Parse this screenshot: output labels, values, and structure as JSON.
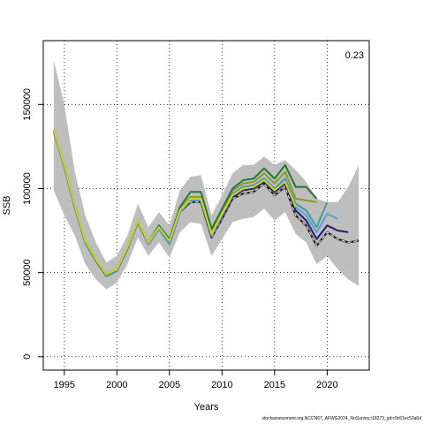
{
  "chart_data": {
    "type": "line",
    "xlabel": "Years",
    "ylabel": "SSB",
    "annotation": "0.23",
    "xlim": [
      1993,
      2024
    ],
    "ylim": [
      -8000,
      188000
    ],
    "xticks": [
      1995,
      2000,
      2005,
      2010,
      2015,
      2020
    ],
    "yticks": [
      0,
      50000,
      100000,
      150000
    ],
    "grid": true,
    "band": {
      "x": [
        1994,
        1995,
        1996,
        1997,
        1998,
        1999,
        2000,
        2001,
        2002,
        2003,
        2004,
        2005,
        2006,
        2007,
        2008,
        2009,
        2010,
        2011,
        2012,
        2013,
        2014,
        2015,
        2016,
        2017,
        2018,
        2019,
        2020,
        2021,
        2022,
        2023
      ],
      "upper": [
        176000,
        150000,
        110000,
        84000,
        68000,
        56000,
        60000,
        72000,
        91000,
        77000,
        86000,
        78000,
        99000,
        107000,
        108000,
        84000,
        96000,
        109000,
        114000,
        114000,
        119000,
        114000,
        117000,
        111000,
        104000,
        94000,
        92000,
        92000,
        101000,
        114000
      ],
      "lower": [
        99000,
        84000,
        72000,
        55000,
        46000,
        40000,
        44000,
        55000,
        71000,
        60000,
        68000,
        59000,
        74000,
        80000,
        79000,
        60000,
        70000,
        80000,
        82000,
        83000,
        88000,
        81000,
        86000,
        73000,
        68000,
        55000,
        60000,
        52000,
        46000,
        42000
      ]
    },
    "series": [
      {
        "color": "#1e1e1e",
        "dashed": true,
        "x": [
          1994,
          1995,
          1996,
          1997,
          1998,
          1999,
          2000,
          2001,
          2002,
          2003,
          2004,
          2005,
          2006,
          2007,
          2008,
          2009,
          2010,
          2011,
          2012,
          2013,
          2014,
          2015,
          2016,
          2017,
          2018,
          2019,
          2020,
          2021,
          2022,
          2023
        ],
        "y": [
          134000,
          113000,
          89000,
          68000,
          57000,
          48000,
          51000,
          64000,
          80000,
          67000,
          76000,
          67000,
          86000,
          92000,
          92000,
          71000,
          82000,
          94000,
          97000,
          98000,
          103000,
          96000,
          101000,
          84000,
          78000,
          66000,
          74000,
          70000,
          68000,
          69000
        ]
      },
      {
        "color": "#2a1a7a",
        "x": [
          1994,
          1995,
          1996,
          1997,
          1998,
          1999,
          2000,
          2001,
          2002,
          2003,
          2004,
          2005,
          2006,
          2007,
          2008,
          2009,
          2010,
          2011,
          2012,
          2013,
          2014,
          2015,
          2016,
          2017,
          2018,
          2019,
          2020,
          2021,
          2022
        ],
        "y": [
          134000,
          113000,
          89000,
          68000,
          57000,
          48000,
          51000,
          64000,
          80000,
          67000,
          76000,
          67000,
          86000,
          93000,
          93000,
          72000,
          83000,
          95000,
          99000,
          100000,
          104000,
          98000,
          103000,
          87000,
          81000,
          70000,
          78000,
          75000,
          74000
        ]
      },
      {
        "color": "#5aa0d8",
        "x": [
          1994,
          1995,
          1996,
          1997,
          1998,
          1999,
          2000,
          2001,
          2002,
          2003,
          2004,
          2005,
          2006,
          2007,
          2008,
          2009,
          2010,
          2011,
          2012,
          2013,
          2014,
          2015,
          2016,
          2017,
          2018,
          2019,
          2020,
          2021
        ],
        "y": [
          134000,
          113000,
          89000,
          68000,
          57000,
          48000,
          51000,
          64000,
          80000,
          67000,
          76000,
          67000,
          86000,
          93000,
          93000,
          72000,
          84000,
          96000,
          100000,
          101000,
          105000,
          99000,
          104000,
          89000,
          84000,
          74000,
          85000,
          82000
        ]
      },
      {
        "color": "#3aa0a0",
        "x": [
          1994,
          1995,
          1996,
          1997,
          1998,
          1999,
          2000,
          2001,
          2002,
          2003,
          2004,
          2005,
          2006,
          2007,
          2008,
          2009,
          2010,
          2011,
          2012,
          2013,
          2014,
          2015,
          2016,
          2017,
          2018,
          2019,
          2020
        ],
        "y": [
          134000,
          113000,
          89000,
          68000,
          57000,
          48000,
          51000,
          64000,
          80000,
          68000,
          77000,
          68000,
          87000,
          94000,
          94000,
          73000,
          85000,
          97000,
          101000,
          102000,
          106000,
          100000,
          106000,
          91000,
          87000,
          77000,
          92000
        ]
      },
      {
        "color": "#8a9a2a",
        "x": [
          1994,
          1995,
          1996,
          1997,
          1998,
          1999,
          2000,
          2001,
          2002,
          2003,
          2004,
          2005,
          2006,
          2007,
          2008,
          2009,
          2010,
          2011,
          2012,
          2013,
          2014,
          2015,
          2016,
          2017,
          2018,
          2019
        ],
        "y": [
          135000,
          114000,
          90000,
          69000,
          58000,
          49000,
          52000,
          65000,
          81000,
          68000,
          77000,
          69000,
          88000,
          95000,
          95000,
          74000,
          86000,
          99000,
          103000,
          104000,
          109000,
          103000,
          110000,
          94000,
          93000,
          92000
        ]
      },
      {
        "color": "#1f7a3a",
        "x": [
          1994,
          1995,
          1996,
          1997,
          1998,
          1999,
          2000,
          2001,
          2002,
          2003,
          2004,
          2005,
          2006,
          2007,
          2008,
          2009,
          2010,
          2011,
          2012,
          2013,
          2014,
          2015,
          2016,
          2017,
          2018,
          2019
        ],
        "y": [
          135000,
          114000,
          90000,
          69000,
          58000,
          49000,
          52000,
          65000,
          81000,
          68000,
          78000,
          70000,
          89000,
          98000,
          98000,
          76000,
          88000,
          100000,
          105000,
          106000,
          112000,
          106000,
          114000,
          101000,
          101000,
          94000
        ]
      },
      {
        "color": "#d8d020",
        "x": [
          1994,
          1995,
          1996,
          1997,
          1998,
          1999,
          2000,
          2001,
          2002,
          2003,
          2004,
          2005,
          2006,
          2007,
          2008,
          2009,
          2010,
          2011,
          2012,
          2013,
          2014,
          2015,
          2016,
          2017
        ],
        "y": [
          135000,
          114000,
          90000,
          69000,
          58000,
          49000,
          52000,
          65000,
          81000,
          68000,
          77000,
          69000,
          87000,
          94000,
          94000,
          73000,
          85000,
          96000,
          100000,
          101000,
          105000,
          99000,
          104000,
          89000
        ]
      }
    ],
    "band_color": "#bebebe"
  },
  "footer": "stockassessment.org,NCCN67_AFWG2024_NoSurvey,r18273_git:c9c61ec53a0d"
}
